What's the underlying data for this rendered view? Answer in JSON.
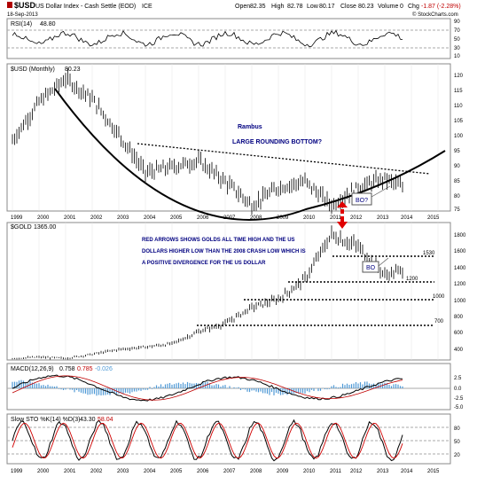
{
  "header": {
    "symbol": "$USD",
    "name": "US Dollar Index - Cash Settle (EOD)",
    "exchange": "ICE",
    "date": "18-Sep-2013",
    "open_label": "Open",
    "open": "82.35",
    "high_label": "High",
    "high": "82.78",
    "low_label": "Low",
    "low": "80.17",
    "close_label": "Close",
    "close": "80.23",
    "volume_label": "Volume",
    "volume": "0",
    "change_label": "Chg",
    "change": "-1.87 (-2.28%)",
    "copyright": "© StockCharts.com"
  },
  "colors": {
    "up": "#000000",
    "down": "#000000",
    "annotation": "#000080",
    "arrow": "#e00000",
    "macd_hist": "#4f9ad6",
    "sto_slow": "#d00000",
    "grid": "#cccccc",
    "fill_band": "#b0b0b0"
  },
  "rsi_panel": {
    "label": "RSI(14)",
    "value": "48.80",
    "ticks": [
      "90",
      "70",
      "50",
      "30",
      "10"
    ]
  },
  "usd_panel": {
    "label": "$USD (Monthly)",
    "value": "80.23",
    "annotation_author": "Rambus",
    "annotation_title": "LARGE ROUNDING BOTTOM?",
    "bo_label": "BO?",
    "ticks": [
      "120",
      "115",
      "110",
      "105",
      "100",
      "95",
      "90",
      "85",
      "80",
      "75"
    ]
  },
  "x_axis": {
    "years": [
      "1999",
      "2000",
      "2001",
      "2002",
      "2003",
      "2004",
      "2005",
      "2006",
      "2007",
      "2008",
      "2009",
      "2010",
      "2011",
      "2012",
      "2013",
      "2014",
      "2015"
    ]
  },
  "gold_panel": {
    "label": "$GOLD",
    "value": "1365.00",
    "annotation_line1": "RED ARROWS SHOWS GOLDS ALL TIME HIGH AND THE US",
    "annotation_line2": "DOLLARS HIGHER LOW THAN THE 2008 CRASH LOW WHICH IS",
    "annotation_line3": "A POSITIVE DIVERGENCE FOR THE US DOLLAR",
    "bo_label": "BO",
    "level_1530": "1530",
    "level_1200": "1200",
    "level_1000": "1000",
    "level_700": "700",
    "ticks": [
      "1800",
      "1600",
      "1400",
      "1200",
      "1000",
      "800",
      "600",
      "400"
    ]
  },
  "macd_panel": {
    "label": "MACD(12,26,9)",
    "v1": "0.758",
    "v2": "0.785",
    "v3": "-0.026",
    "ticks": [
      "2.5",
      "0.0",
      "-2.5",
      "-5.0"
    ]
  },
  "sto_panel": {
    "label": "Slow STO %K(14) %D(3)",
    "v1": "43.30",
    "v2": "58.04",
    "ticks": [
      "80",
      "50",
      "20"
    ]
  },
  "chart_data": {
    "type": "line",
    "x": [
      1999,
      2000,
      2001,
      2002,
      2003,
      2004,
      2005,
      2006,
      2007,
      2008,
      2009,
      2010,
      2011,
      2012,
      2013,
      2013.7
    ],
    "series": [
      {
        "name": "$USD (Monthly)",
        "values": [
          96,
          109,
          117,
          110,
          98,
          85,
          87,
          89,
          82,
          74,
          80,
          82,
          74,
          80,
          83,
          80
        ]
      },
      {
        "name": "$GOLD",
        "values": [
          270,
          285,
          270,
          320,
          380,
          410,
          450,
          600,
          700,
          900,
          1000,
          1250,
          1800,
          1650,
          1300,
          1365
        ]
      }
    ],
    "levels_gold": [
      1530,
      1200,
      1000,
      700
    ],
    "ylim_usd": [
      72,
      122
    ],
    "ylim_gold": [
      250,
      1950
    ],
    "xlabel": "",
    "ylabel": ""
  }
}
